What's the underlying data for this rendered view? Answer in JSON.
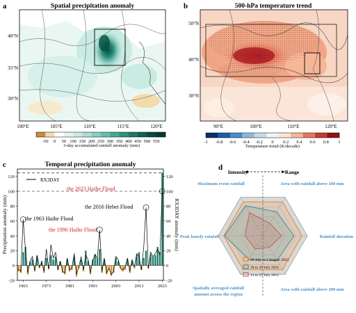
{
  "chart_data": [
    {
      "panel": "a",
      "type": "heatmap",
      "title": "Spatial precipitation anomaly",
      "x_tick_labels": [
        "100°E",
        "105°E",
        "110°E",
        "115°E",
        "120°E"
      ],
      "y_tick_labels": [
        "40°N",
        "35°N",
        "30°N"
      ],
      "colorbar": {
        "label": "3-day accumulated rainfall anomaly (mm)",
        "ticks": [
          -50,
          0,
          50,
          100,
          150,
          200,
          250,
          300,
          350,
          400,
          450,
          500,
          550
        ],
        "colors": [
          "#c98a3a",
          "#f2dcae",
          "#ffffff",
          "#e3f4ef",
          "#c9ebe2",
          "#a9ded3",
          "#87cfc1",
          "#64bdae",
          "#46a898",
          "#2e9180",
          "#1c7a69",
          "#0f6353",
          "#064d40",
          "#033a30"
        ]
      }
    },
    {
      "panel": "b",
      "type": "heatmap",
      "title": "500-hPa temperature trend",
      "x_tick_labels": [
        "90°E",
        "100°E",
        "110°E",
        "120°E"
      ],
      "y_tick_labels": [
        "50°N",
        "40°N",
        "30°N"
      ],
      "colorbar": {
        "label": "Temperature trend (K/decade)",
        "ticks": [
          "-1",
          "-0.8",
          "-0.6",
          "-0.4",
          "-0.2",
          "0",
          "0.2",
          "0.4",
          "0.6",
          "0.8",
          "1"
        ],
        "colors": [
          "#08306b",
          "#1f5ea8",
          "#4a8cc7",
          "#8bbad9",
          "#c5dbeb",
          "#eef4f8",
          "#fbe5d8",
          "#f6b698",
          "#e8755a",
          "#c63a33",
          "#8f1219"
        ]
      }
    },
    {
      "panel": "c",
      "type": "bar",
      "title": "Temporal precipitation anomaly",
      "ylabel": "Precipitation anomaly (mm)",
      "y2label": "RX3DAY anomaly (mm)",
      "ylim": [
        -20,
        130
      ],
      "yticks": [
        -20,
        0,
        20,
        40,
        60,
        80,
        100,
        120
      ],
      "xticks": [
        1963,
        1973,
        1983,
        1993,
        2003,
        2013,
        2023
      ],
      "legend": "RX3DAY",
      "colors": {
        "positive": "#1f7a6a",
        "negative": "#c8932f",
        "line": "#000000",
        "highlight": "#d62728"
      },
      "annotations": [
        {
          "text": "the 2023 Haihe Flood",
          "color": "#d62728",
          "year": 2023
        },
        {
          "text": "the 2016 Hebei Flood",
          "color": "#000000",
          "year": 2016
        },
        {
          "text": "the 1963 Haihe Flood",
          "color": "#000000",
          "year": 1963
        },
        {
          "text": "the 1996 Haihe Flood",
          "color": "#d62728",
          "year": 1996
        }
      ],
      "x": [
        1961,
        1962,
        1963,
        1964,
        1965,
        1966,
        1967,
        1968,
        1969,
        1970,
        1971,
        1972,
        1973,
        1974,
        1975,
        1976,
        1977,
        1978,
        1979,
        1980,
        1981,
        1982,
        1983,
        1984,
        1985,
        1986,
        1987,
        1988,
        1989,
        1990,
        1991,
        1992,
        1993,
        1994,
        1995,
        1996,
        1997,
        1998,
        1999,
        2000,
        2001,
        2002,
        2003,
        2004,
        2005,
        2006,
        2007,
        2008,
        2009,
        2010,
        2011,
        2012,
        2013,
        2014,
        2015,
        2016,
        2017,
        2018,
        2019,
        2020,
        2021,
        2022,
        2023
      ],
      "bars": [
        -8,
        -10,
        18,
        25,
        -12,
        5,
        8,
        -6,
        12,
        -4,
        6,
        -10,
        10,
        -5,
        14,
        8,
        12,
        -6,
        5,
        -10,
        -12,
        8,
        -8,
        -6,
        12,
        -15,
        -4,
        8,
        -8,
        20,
        6,
        -12,
        8,
        15,
        10,
        22,
        -10,
        8,
        -12,
        -6,
        -14,
        -10,
        10,
        6,
        -4,
        -8,
        -6,
        8,
        -10,
        6,
        -4,
        14,
        18,
        -6,
        10,
        20,
        -4,
        15,
        12,
        14,
        25,
        18,
        125
      ],
      "line": [
        -5,
        -8,
        62,
        20,
        -10,
        6,
        12,
        -8,
        14,
        -2,
        4,
        -8,
        22,
        -5,
        28,
        10,
        18,
        -6,
        6,
        -8,
        -10,
        10,
        -6,
        -4,
        16,
        -12,
        -2,
        12,
        -6,
        14,
        8,
        -10,
        6,
        15,
        10,
        48,
        -8,
        10,
        -10,
        -4,
        -12,
        -8,
        12,
        8,
        -4,
        -6,
        -2,
        10,
        -8,
        8,
        -2,
        16,
        12,
        -6,
        24,
        78,
        -4,
        18,
        12,
        16,
        22,
        14,
        100
      ]
    },
    {
      "panel": "d",
      "type": "radar",
      "title_left": "Intensity",
      "title_right": "Range",
      "axes": [
        "Maximum event rainfall",
        "Area with rainfall above 100 mm",
        "Rainfall  duration",
        "Area with rainfall above 200 mm",
        "Spatially averaged rainfall amount across the region",
        "Peak hourly rainfall"
      ],
      "axis_label_color": "#4a90c8",
      "series": [
        {
          "name": "29 July to 1 August 2023",
          "color": "#e8872c",
          "values": [
            0.88,
            0.88,
            0.88,
            0.88,
            0.88,
            0.88
          ]
        },
        {
          "name": "18 to 20 July 2016",
          "color": "#3b8f9c",
          "values": [
            0.78,
            0.62,
            0.7,
            0.64,
            0.62,
            0.86
          ]
        },
        {
          "name": "21 to 22 July 2012",
          "color": "#c0605a",
          "values": [
            0.6,
            0.32,
            0.42,
            0.3,
            0.34,
            0.4
          ]
        }
      ]
    }
  ],
  "panels": [
    {
      "letter": "a"
    },
    {
      "letter": "b"
    },
    {
      "letter": "c"
    },
    {
      "letter": "d"
    }
  ]
}
